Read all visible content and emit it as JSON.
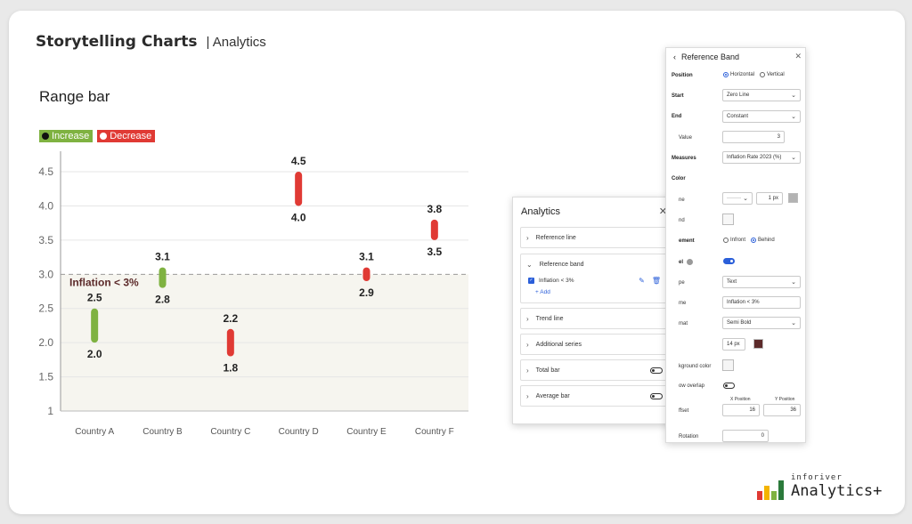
{
  "header": {
    "title": "Storytelling Charts",
    "subtitle": "| Analytics"
  },
  "chart_data": {
    "type": "range-bar",
    "title": "Range bar",
    "legend": [
      {
        "label": "Increase",
        "color": "#7fb241"
      },
      {
        "label": "Decrease",
        "color": "#e03a34"
      }
    ],
    "categories": [
      "Country A",
      "Country B",
      "Country C",
      "Country D",
      "Country E",
      "Country F"
    ],
    "ranges": [
      {
        "low": 2.0,
        "high": 2.5,
        "direction": "increase"
      },
      {
        "low": 2.8,
        "high": 3.1,
        "direction": "increase"
      },
      {
        "low": 1.8,
        "high": 2.2,
        "direction": "decrease"
      },
      {
        "low": 4.0,
        "high": 4.5,
        "direction": "decrease"
      },
      {
        "low": 2.9,
        "high": 3.1,
        "direction": "decrease"
      },
      {
        "low": 3.5,
        "high": 3.8,
        "direction": "decrease"
      }
    ],
    "yticks": [
      "1",
      "1.5",
      "2.0",
      "2.5",
      "3.0",
      "3.5",
      "4.0",
      "4.5"
    ],
    "ylim": [
      1,
      4.8
    ],
    "reference_band": {
      "from": 1,
      "to": 3,
      "label": "Inflation < 3%",
      "label_color": "#5c2a2a"
    },
    "grid": true
  },
  "reference_band_panel": {
    "title": "Reference Band",
    "position_label": "Position",
    "position_options": [
      "Horizontal",
      "Vertical"
    ],
    "start_label": "Start",
    "start_value": "Zero Line",
    "end_label": "End",
    "end_value": "Constant",
    "value_label": "Value",
    "value_value": "3",
    "measures_label": "Measures",
    "measures_value": "Inflation Rate 2023 (%)",
    "color_label": "Color",
    "line_label": "ne",
    "line_width": "1 px",
    "band_label": "nd",
    "placement_label": "ement",
    "placement_options": [
      "Infront",
      "Behind"
    ],
    "show_label": "el",
    "type_label": "pe",
    "type_value": "Text",
    "name_label": "me",
    "name_value": "Inflation < 3%",
    "format_label": "mat",
    "format_value": "Semi Bold",
    "font_size": "14 px",
    "font_color": "#5c2a2a",
    "bg_label": "kground color",
    "overlap_label": "ow overlap",
    "offset_label": "ffset",
    "x_position_label": "X Position",
    "x_position_value": "16",
    "y_position_label": "Y Position",
    "y_position_value": "36",
    "rotation_label": "Rotation",
    "rotation_value": "0"
  },
  "analytics_panel": {
    "title": "Analytics",
    "sections": {
      "reference_line": "Reference line",
      "reference_band": "Reference band",
      "band_item": "Inflation < 3%",
      "add": "+ Add",
      "trend_line": "Trend line",
      "additional_series": "Additional series",
      "total_bar": "Total bar",
      "average_bar": "Average bar"
    }
  },
  "logo": {
    "small": "inforiver",
    "big": "Analytics+"
  },
  "colors": {
    "increase": "#7fb241",
    "decrease": "#e03a34",
    "accent": "#2b5fd9"
  }
}
